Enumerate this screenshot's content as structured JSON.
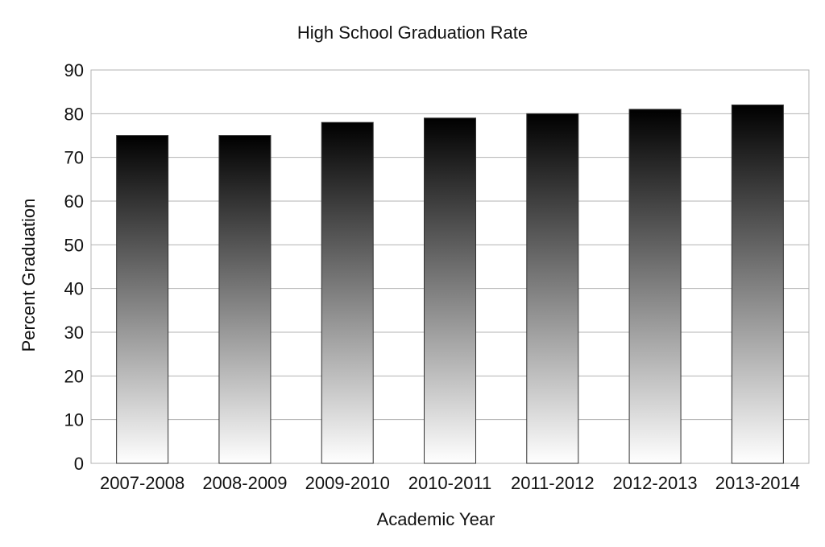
{
  "chart_data": {
    "type": "bar",
    "title": "High School Graduation Rate",
    "xlabel": "Academic Year",
    "ylabel": "Percent Graduation",
    "categories": [
      "2007-2008",
      "2008-2009",
      "2009-2010",
      "2010-2011",
      "2011-2012",
      "2012-2013",
      "2013-2014"
    ],
    "values": [
      75,
      75,
      78,
      79,
      80,
      81,
      82
    ],
    "ylim": [
      0,
      90
    ],
    "yticks": [
      0,
      10,
      20,
      30,
      40,
      50,
      60,
      70,
      80,
      90
    ],
    "grid": true,
    "legend": "none",
    "bar_gradient": {
      "top": "#000000",
      "bottom": "#ffffff"
    }
  }
}
